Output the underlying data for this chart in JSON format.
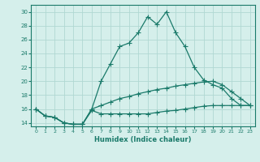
{
  "xlabel": "Humidex (Indice chaleur)",
  "xlim": [
    -0.5,
    23.5
  ],
  "ylim": [
    13.5,
    31
  ],
  "yticks": [
    14,
    16,
    18,
    20,
    22,
    24,
    26,
    28,
    30
  ],
  "xticks": [
    0,
    1,
    2,
    3,
    4,
    5,
    6,
    7,
    8,
    9,
    10,
    11,
    12,
    13,
    14,
    15,
    16,
    17,
    18,
    19,
    20,
    21,
    22,
    23
  ],
  "background_color": "#d5efeb",
  "grid_color": "#b0d8d2",
  "line_color": "#1a7a6a",
  "line1_x": [
    0,
    1,
    2,
    3,
    4,
    5,
    6,
    7,
    8,
    9,
    10,
    11,
    12,
    13,
    14,
    15,
    16,
    17,
    18,
    19,
    20,
    21,
    22,
    23
  ],
  "line1_y": [
    16.0,
    15.0,
    14.8,
    14.0,
    13.8,
    13.8,
    16.0,
    20.0,
    22.5,
    25.0,
    25.5,
    27.0,
    29.3,
    28.2,
    30.0,
    27.0,
    25.0,
    22.0,
    20.2,
    19.5,
    19.0,
    17.5,
    16.5,
    16.5
  ],
  "line2_x": [
    0,
    1,
    2,
    3,
    4,
    5,
    6,
    7,
    8,
    9,
    10,
    11,
    12,
    13,
    14,
    15,
    16,
    17,
    18,
    19,
    20,
    21,
    22,
    23
  ],
  "line2_y": [
    16.0,
    15.0,
    14.8,
    14.0,
    13.8,
    13.8,
    16.0,
    16.5,
    17.0,
    17.5,
    17.8,
    18.2,
    18.5,
    18.8,
    19.0,
    19.3,
    19.5,
    19.7,
    19.9,
    20.0,
    19.5,
    18.5,
    17.5,
    16.5
  ],
  "line3_x": [
    0,
    1,
    2,
    3,
    4,
    5,
    6,
    7,
    8,
    9,
    10,
    11,
    12,
    13,
    14,
    15,
    16,
    17,
    18,
    19,
    20,
    21,
    22,
    23
  ],
  "line3_y": [
    16.0,
    15.0,
    14.8,
    14.0,
    13.8,
    13.8,
    15.8,
    15.3,
    15.3,
    15.3,
    15.3,
    15.3,
    15.3,
    15.5,
    15.7,
    15.8,
    16.0,
    16.2,
    16.4,
    16.5,
    16.5,
    16.5,
    16.5,
    16.5
  ]
}
